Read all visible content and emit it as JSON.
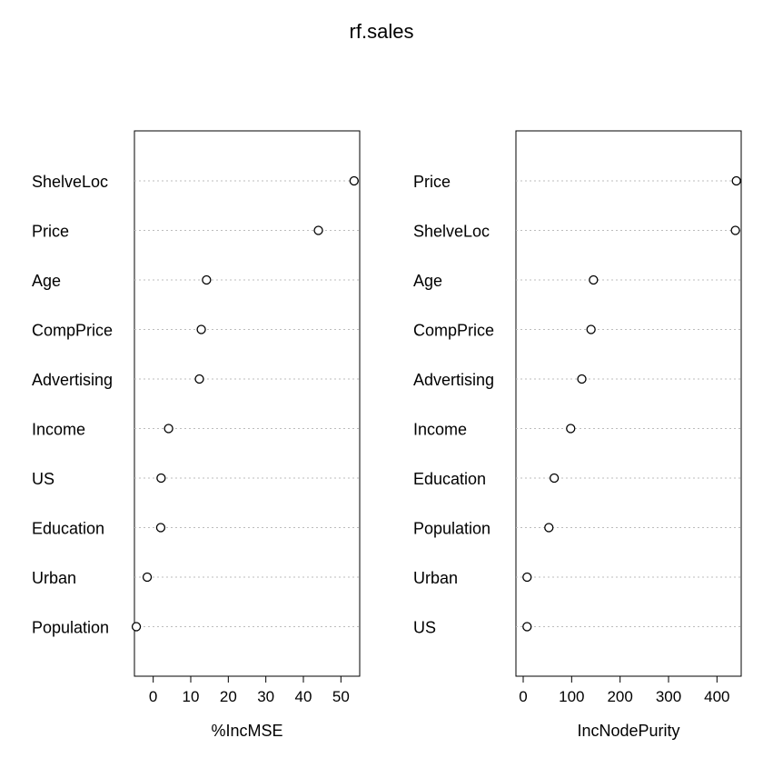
{
  "title": "rf.sales",
  "chart_data": [
    {
      "type": "scatter",
      "xlabel": "%IncMSE",
      "xlim": [
        -5,
        55
      ],
      "xticks": [
        0,
        10,
        20,
        30,
        40,
        50
      ],
      "grid": "dotted horizontal guide lines",
      "points": [
        {
          "label": "ShelveLoc",
          "value": 53.5
        },
        {
          "label": "Price",
          "value": 44
        },
        {
          "label": "Age",
          "value": 14.2
        },
        {
          "label": "CompPrice",
          "value": 12.8
        },
        {
          "label": "Advertising",
          "value": 12.3
        },
        {
          "label": "Income",
          "value": 4.1
        },
        {
          "label": "US",
          "value": 2.1
        },
        {
          "label": "Education",
          "value": 2
        },
        {
          "label": "Urban",
          "value": -1.6
        },
        {
          "label": "Population",
          "value": -4.5
        }
      ]
    },
    {
      "type": "scatter",
      "xlabel": "IncNodePurity",
      "xlim": [
        -15,
        450
      ],
      "xticks": [
        0,
        100,
        200,
        300,
        400
      ],
      "grid": "dotted horizontal guide lines",
      "points": [
        {
          "label": "Price",
          "value": 440
        },
        {
          "label": "ShelveLoc",
          "value": 438
        },
        {
          "label": "Age",
          "value": 145
        },
        {
          "label": "CompPrice",
          "value": 140
        },
        {
          "label": "Advertising",
          "value": 121
        },
        {
          "label": "Income",
          "value": 98
        },
        {
          "label": "Education",
          "value": 64
        },
        {
          "label": "Population",
          "value": 53
        },
        {
          "label": "Urban",
          "value": 8
        },
        {
          "label": "US",
          "value": 8
        }
      ]
    }
  ]
}
